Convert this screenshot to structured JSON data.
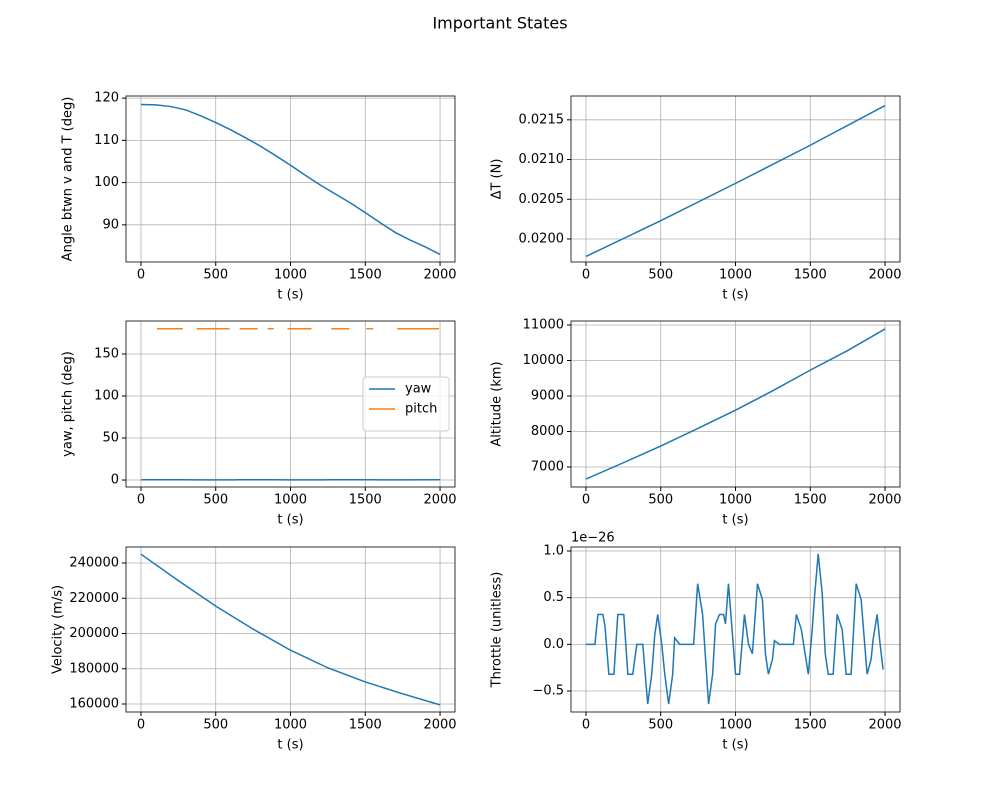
{
  "title": "Important States",
  "chart_data": [
    {
      "type": "line",
      "xlabel": "t (s)",
      "ylabel": "Angle btwn v and T (deg)",
      "x": [
        0,
        100,
        200,
        300,
        400,
        500,
        600,
        700,
        800,
        900,
        1000,
        1100,
        1200,
        1300,
        1400,
        1500,
        1600,
        1700,
        1800,
        1900,
        2000
      ],
      "series": [
        {
          "color": "#1f77b4",
          "values": [
            118.5,
            118.4,
            118.0,
            117.2,
            115.8,
            114.2,
            112.5,
            110.6,
            108.6,
            106.4,
            104.1,
            101.7,
            99.4,
            97.3,
            95.2,
            92.9,
            90.5,
            88.2,
            86.4,
            84.8,
            83.0
          ]
        }
      ],
      "xlim": [
        -100,
        2100
      ],
      "xticks": [
        0,
        500,
        1000,
        1500,
        2000
      ],
      "ylim": [
        81.2,
        120.5
      ],
      "yticks": [
        90,
        100,
        110,
        120
      ],
      "grid": true
    },
    {
      "type": "line",
      "xlabel": "t (s)",
      "ylabel": "ΔT (N)",
      "x": [
        0,
        500,
        1000,
        1500,
        2000
      ],
      "series": [
        {
          "color": "#1f77b4",
          "values": [
            0.01978,
            0.02023,
            0.0207,
            0.02118,
            0.02168
          ]
        }
      ],
      "xlim": [
        -100,
        2100
      ],
      "xticks": [
        0,
        500,
        1000,
        1500,
        2000
      ],
      "ylim": [
        0.01971,
        0.0218
      ],
      "yticks": [
        {
          "value": 0.02,
          "label": "0.0200"
        },
        {
          "value": 0.0205,
          "label": "0.0205"
        },
        {
          "value": 0.021,
          "label": "0.0210"
        },
        {
          "value": 0.0215,
          "label": "0.0215"
        }
      ],
      "grid": true
    },
    {
      "type": "line",
      "xlabel": "t (s)",
      "ylabel": "yaw, pitch (deg)",
      "x": [
        0,
        107,
        280,
        300,
        373,
        593,
        620,
        660,
        780,
        800,
        847,
        887,
        900,
        980,
        1140,
        1200,
        1273,
        1393,
        1450,
        1507,
        1553,
        1600,
        1713,
        1993,
        2000
      ],
      "series": [
        {
          "name": "yaw",
          "color": "#1f77b4",
          "values": [
            0.3,
            0.3,
            0.3,
            0.3,
            0.2,
            0.2,
            0.2,
            0.3,
            0.3,
            0.3,
            0.3,
            0.3,
            0.3,
            0.2,
            0.2,
            0.2,
            0.3,
            0.3,
            0.3,
            0.3,
            0.3,
            0.2,
            0.2,
            0.3,
            0.3
          ]
        },
        {
          "name": "pitch",
          "color": "#ff7f0e",
          "values": [
            null,
            180,
            180,
            null,
            180,
            180,
            null,
            180,
            180,
            null,
            180,
            180,
            null,
            180,
            180,
            null,
            180,
            180,
            null,
            180,
            180,
            null,
            180,
            180,
            null
          ]
        }
      ],
      "xlim": [
        -100,
        2100
      ],
      "xticks": [
        0,
        500,
        1000,
        1500,
        2000
      ],
      "ylim": [
        -8.3,
        189.3
      ],
      "yticks": [
        0,
        50,
        100,
        150
      ],
      "grid": true,
      "legend": "center right"
    },
    {
      "type": "line",
      "xlabel": "t (s)",
      "ylabel": "Altitude (km)",
      "x": [
        0,
        250,
        500,
        750,
        1000,
        1250,
        1500,
        1750,
        2000
      ],
      "series": [
        {
          "color": "#1f77b4",
          "values": [
            6660,
            7120,
            7590,
            8090,
            8600,
            9150,
            9730,
            10280,
            10890
          ]
        }
      ],
      "xlim": [
        -100,
        2100
      ],
      "xticks": [
        0,
        500,
        1000,
        1500,
        2000
      ],
      "ylim": [
        6437,
        11113
      ],
      "yticks": [
        7000,
        8000,
        9000,
        10000,
        11000
      ],
      "grid": true
    },
    {
      "type": "line",
      "xlabel": "t (s)",
      "ylabel": "Velocity (m/s)",
      "x": [
        0,
        250,
        500,
        750,
        1000,
        1250,
        1500,
        1750,
        2000
      ],
      "series": [
        {
          "color": "#1f77b4",
          "values": [
            245000,
            230000,
            215500,
            202500,
            190500,
            180500,
            172500,
            165800,
            159500
          ]
        }
      ],
      "xlim": [
        -100,
        2100
      ],
      "xticks": [
        0,
        500,
        1000,
        1500,
        2000
      ],
      "ylim": [
        155461,
        249078
      ],
      "yticks": [
        160000,
        180000,
        200000,
        220000,
        240000
      ],
      "grid": true
    },
    {
      "type": "line",
      "xlabel": "t (s)",
      "ylabel": "Throttle (unitless)",
      "offset_text": "1e−26",
      "x": [
        0,
        60,
        80,
        113,
        127,
        153,
        187,
        213,
        253,
        280,
        313,
        340,
        380,
        413,
        440,
        460,
        480,
        507,
        527,
        553,
        580,
        593,
        627,
        720,
        747,
        780,
        820,
        847,
        867,
        893,
        920,
        933,
        953,
        980,
        1000,
        1027,
        1060,
        1087,
        1113,
        1147,
        1180,
        1200,
        1220,
        1247,
        1260,
        1293,
        1387,
        1407,
        1440,
        1487,
        1513,
        1527,
        1553,
        1580,
        1600,
        1620,
        1653,
        1680,
        1713,
        1740,
        1773,
        1807,
        1840,
        1880,
        1907,
        1920,
        1947,
        1967,
        1987
      ],
      "series": [
        {
          "color": "#1f77b4",
          "values": [
            0,
            0,
            0.32,
            0.32,
            0.2,
            -0.32,
            -0.32,
            0.32,
            0.32,
            -0.32,
            -0.32,
            0,
            0,
            -0.64,
            -0.32,
            0.1,
            0.32,
            0,
            -0.32,
            -0.64,
            -0.32,
            0.07,
            0,
            0,
            0.65,
            0.32,
            -0.64,
            -0.32,
            0.22,
            0.32,
            0.32,
            0.22,
            0.65,
            0.1,
            -0.32,
            -0.32,
            0.32,
            0,
            -0.1,
            0.65,
            0.48,
            -0.1,
            -0.32,
            -0.16,
            0.04,
            0,
            0,
            0.32,
            0.16,
            -0.32,
            0.16,
            0.48,
            0.97,
            0.54,
            -0.1,
            -0.32,
            -0.32,
            0.32,
            0.16,
            -0.32,
            -0.32,
            0.65,
            0.48,
            -0.32,
            -0.16,
            0.05,
            0.32,
            0,
            -0.27
          ]
        }
      ],
      "xlim": [
        -100,
        2100
      ],
      "xticks": [
        0,
        500,
        1000,
        1500,
        2000
      ],
      "ylim": [
        -0.725,
        1.043
      ],
      "yticks": [
        {
          "value": -0.5,
          "label": "−0.5"
        },
        {
          "value": 0,
          "label": "0.0"
        },
        {
          "value": 0.5,
          "label": "0.5"
        },
        {
          "value": 1.0,
          "label": "1.0"
        }
      ],
      "grid": true
    }
  ]
}
